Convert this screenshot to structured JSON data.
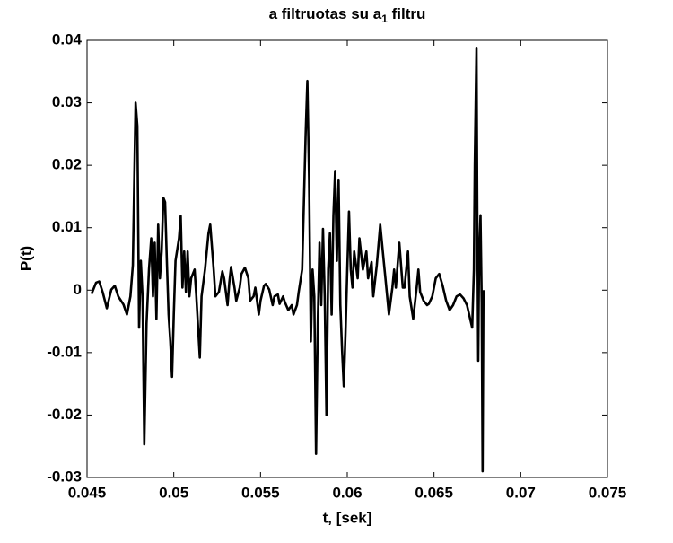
{
  "chart_data": {
    "type": "line",
    "title": {
      "main": "a filtruotas su a",
      "subscript": "1",
      "rest": " filtru"
    },
    "xlabel": "t, [sek]",
    "ylabel": "P(t)",
    "xlim": [
      0.045,
      0.075
    ],
    "xticks": [
      0.045,
      0.05,
      0.055,
      0.06,
      0.065,
      0.07,
      0.075
    ],
    "ylim": [
      -0.03,
      0.04
    ],
    "yticks": [
      -0.03,
      -0.02,
      -0.01,
      0,
      0.01,
      0.02,
      0.03,
      0.04
    ],
    "grid": false,
    "color": "#000000",
    "x": [
      0.04526,
      0.04552,
      0.0457,
      0.0459,
      0.04614,
      0.0464,
      0.0466,
      0.0468,
      0.0471,
      0.0473,
      0.0475,
      0.04764,
      0.0478,
      0.0479,
      0.048,
      0.0481,
      0.0482,
      0.0483,
      0.04843,
      0.04857,
      0.0487,
      0.0488,
      0.0489,
      0.049,
      0.0491,
      0.0492,
      0.0493,
      0.0494,
      0.0495,
      0.0496,
      0.0497,
      0.0498,
      0.0499,
      0.05,
      0.0501,
      0.0503,
      0.0504,
      0.0505,
      0.0506,
      0.0507,
      0.0508,
      0.0509,
      0.051,
      0.0512,
      0.0513,
      0.0515,
      0.0516,
      0.0518,
      0.052,
      0.0521,
      0.0523,
      0.0524,
      0.0526,
      0.0528,
      0.0529,
      0.0531,
      0.0532,
      0.0533,
      0.0535,
      0.0536,
      0.0538,
      0.0539,
      0.0541,
      0.0543,
      0.0544,
      0.0546,
      0.0547,
      0.0549,
      0.055,
      0.0552,
      0.0553,
      0.0555,
      0.0557,
      0.0558,
      0.056,
      0.0561,
      0.0563,
      0.0564,
      0.0566,
      0.0568,
      0.0569,
      0.0571,
      0.0572,
      0.0574,
      0.0576,
      0.0577,
      0.0578,
      0.0579,
      0.058,
      0.0581,
      0.0582,
      0.0583,
      0.0584,
      0.0585,
      0.0586,
      0.0587,
      0.0588,
      0.0589,
      0.059,
      0.0591,
      0.0592,
      0.0593,
      0.0594,
      0.0595,
      0.0596,
      0.0597,
      0.0598,
      0.0599,
      0.06,
      0.0601,
      0.0602,
      0.0603,
      0.0604,
      0.0606,
      0.0607,
      0.0609,
      0.0611,
      0.0612,
      0.0614,
      0.0615,
      0.0617,
      0.0619,
      0.0621,
      0.0622,
      0.0624,
      0.0626,
      0.0627,
      0.0628,
      0.063,
      0.0632,
      0.0633,
      0.0635,
      0.0636,
      0.0638,
      0.064,
      0.0641,
      0.0642,
      0.0644,
      0.0646,
      0.0647,
      0.0649,
      0.0651,
      0.0653,
      0.0655,
      0.0657,
      0.0659,
      0.0661,
      0.0663,
      0.0665,
      0.0667,
      0.0669,
      0.0672,
      0.0673,
      0.06735,
      0.06745,
      0.0675,
      0.06755,
      0.0676,
      0.06768,
      0.06775,
      0.0678,
      0.06785
    ],
    "values": [
      -0.0006,
      0.0012,
      0.0014,
      -0.0003,
      -0.0029,
      0.0001,
      0.0007,
      -0.001,
      -0.0023,
      -0.0039,
      -0.001,
      0.004,
      0.03,
      0.0263,
      -0.006,
      0.0047,
      -0.001,
      -0.0247,
      -0.0053,
      0.0033,
      0.0083,
      -0.001,
      0.0076,
      -0.0046,
      0.0105,
      0.0019,
      0.0062,
      0.0148,
      0.0141,
      0.0047,
      -0.0039,
      -0.0082,
      -0.0139,
      -0.0039,
      0.0047,
      0.0083,
      0.0119,
      0.0004,
      0.0062,
      -0.0003,
      0.0062,
      -0.001,
      0.0019,
      0.0033,
      -0.001,
      -0.0108,
      -0.001,
      0.0033,
      0.0091,
      0.0105,
      0.0033,
      -0.001,
      -0.0003,
      0.003,
      0.0019,
      -0.0024,
      0.0012,
      0.0037,
      0.0004,
      -0.0017,
      0.0004,
      0.0026,
      0.0036,
      0.0019,
      -0.0017,
      -0.001,
      0.0004,
      -0.0039,
      -0.0017,
      0.0007,
      0.001,
      0.0001,
      -0.0024,
      -0.001,
      -0.0007,
      -0.0022,
      -0.001,
      -0.0019,
      -0.0032,
      -0.0024,
      -0.0039,
      -0.0024,
      -0.0003,
      0.0033,
      0.0249,
      0.0335,
      0.0177,
      -0.0082,
      0.0033,
      -0.001,
      -0.0262,
      -0.0053,
      0.0076,
      -0.0024,
      0.0098,
      -0.001,
      -0.02,
      0.0033,
      0.0091,
      -0.0039,
      0.0119,
      0.0191,
      0.0047,
      0.0177,
      -0.0024,
      -0.0096,
      -0.0154,
      -0.0068,
      0.0033,
      0.0126,
      0.0033,
      0.0004,
      0.0062,
      0.0019,
      0.0083,
      0.0033,
      0.0062,
      0.0019,
      0.0045,
      -0.001,
      0.004,
      0.0105,
      0.0047,
      0.0019,
      -0.0039,
      0.0004,
      0.0033,
      0.0004,
      0.0076,
      0.0004,
      0.0004,
      0.0062,
      -0.001,
      -0.0046,
      0.0004,
      0.0033,
      -0.0003,
      -0.0017,
      -0.0024,
      -0.0022,
      -0.001,
      0.0019,
      0.0026,
      0.0007,
      -0.0017,
      -0.0032,
      -0.0024,
      -0.001,
      -0.0007,
      -0.0013,
      -0.0024,
      -0.006,
      0.0033,
      0.02,
      0.0388,
      0.01,
      -0.0113,
      0.005,
      0.012,
      -0.002,
      -0.029,
      0
    ]
  }
}
